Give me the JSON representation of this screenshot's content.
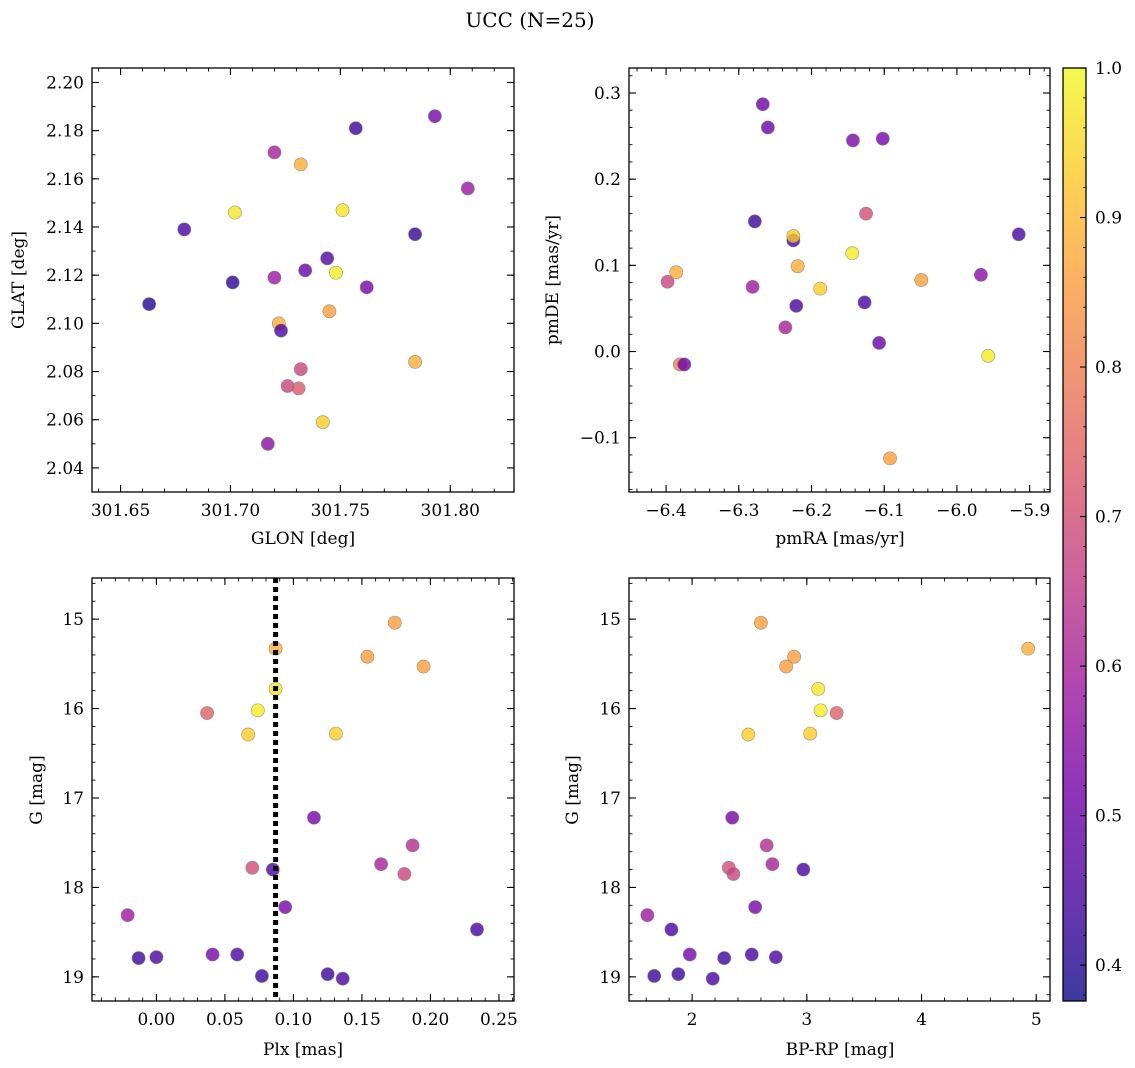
{
  "figure": {
    "title": "UCC (N=25)"
  },
  "colormap": {
    "name": "plasma",
    "stops": [
      "#0d0887",
      "#46039f",
      "#7201a8",
      "#9c179e",
      "#bd3786",
      "#d8576b",
      "#ed7953",
      "#fb9f3a",
      "#fdca26",
      "#f0f921"
    ],
    "point_alpha": 0.8,
    "point_edge_color": "#7f7f7f"
  },
  "chart_data": [
    {
      "id": "glon_glat",
      "type": "scatter",
      "xlabel": "GLON [deg]",
      "ylabel": "GLAT [deg]",
      "xlim": [
        301.637,
        301.829
      ],
      "ylim": [
        2.03,
        2.206
      ],
      "invert_y": false,
      "grid": false,
      "xticks": [
        301.65,
        301.7,
        301.75,
        301.8
      ],
      "xtick_labels": [
        "301.65",
        "301.70",
        "301.75",
        "301.80"
      ],
      "yticks": [
        2.04,
        2.06,
        2.08,
        2.1,
        2.12,
        2.14,
        2.16,
        2.18,
        2.2
      ],
      "ytick_labels": [
        "2.04",
        "2.06",
        "2.08",
        "2.10",
        "2.12",
        "2.14",
        "2.16",
        "2.18",
        "2.20"
      ],
      "points": [
        {
          "x": 301.663,
          "y": 2.108,
          "c": 0.4
        },
        {
          "x": 301.679,
          "y": 2.139,
          "c": 0.45
        },
        {
          "x": 301.701,
          "y": 2.117,
          "c": 0.41
        },
        {
          "x": 301.702,
          "y": 2.146,
          "c": 0.97
        },
        {
          "x": 301.717,
          "y": 2.05,
          "c": 0.55
        },
        {
          "x": 301.72,
          "y": 2.119,
          "c": 0.58
        },
        {
          "x": 301.72,
          "y": 2.171,
          "c": 0.6
        },
        {
          "x": 301.722,
          "y": 2.1,
          "c": 0.88
        },
        {
          "x": 301.723,
          "y": 2.097,
          "c": 0.45
        },
        {
          "x": 301.726,
          "y": 2.074,
          "c": 0.68
        },
        {
          "x": 301.731,
          "y": 2.073,
          "c": 0.73
        },
        {
          "x": 301.732,
          "y": 2.081,
          "c": 0.68
        },
        {
          "x": 301.732,
          "y": 2.166,
          "c": 0.88
        },
        {
          "x": 301.734,
          "y": 2.122,
          "c": 0.5
        },
        {
          "x": 301.742,
          "y": 2.059,
          "c": 0.93
        },
        {
          "x": 301.744,
          "y": 2.127,
          "c": 0.46
        },
        {
          "x": 301.745,
          "y": 2.105,
          "c": 0.86
        },
        {
          "x": 301.748,
          "y": 2.121,
          "c": 0.98
        },
        {
          "x": 301.751,
          "y": 2.147,
          "c": 0.97
        },
        {
          "x": 301.757,
          "y": 2.181,
          "c": 0.43
        },
        {
          "x": 301.762,
          "y": 2.115,
          "c": 0.52
        },
        {
          "x": 301.784,
          "y": 2.084,
          "c": 0.88
        },
        {
          "x": 301.784,
          "y": 2.137,
          "c": 0.42
        },
        {
          "x": 301.793,
          "y": 2.186,
          "c": 0.52
        },
        {
          "x": 301.808,
          "y": 2.156,
          "c": 0.58
        }
      ]
    },
    {
      "id": "pm",
      "type": "scatter",
      "xlabel": "pmRA [mas/yr]",
      "ylabel": "pmDE [mas/yr]",
      "xlim": [
        -6.451,
        -5.872
      ],
      "ylim": [
        -0.163,
        0.329
      ],
      "invert_y": false,
      "grid": false,
      "xticks": [
        -6.4,
        -6.3,
        -6.2,
        -6.1,
        -6.0,
        -5.9
      ],
      "xtick_labels": [
        "−6.4",
        "−6.3",
        "−6.2",
        "−6.1",
        "−6.0",
        "−5.9"
      ],
      "yticks": [
        -0.1,
        0.0,
        0.1,
        0.2,
        0.3
      ],
      "ytick_labels": [
        "−0.1",
        "0.0",
        "0.1",
        "0.2",
        "0.3"
      ],
      "points": [
        {
          "x": -6.398,
          "y": 0.081,
          "c": 0.68
        },
        {
          "x": -6.386,
          "y": 0.092,
          "c": 0.88
        },
        {
          "x": -6.381,
          "y": -0.015,
          "c": 0.8
        },
        {
          "x": -6.375,
          "y": -0.015,
          "c": 0.5
        },
        {
          "x": -6.281,
          "y": 0.075,
          "c": 0.58
        },
        {
          "x": -6.278,
          "y": 0.151,
          "c": 0.43
        },
        {
          "x": -6.267,
          "y": 0.287,
          "c": 0.5
        },
        {
          "x": -6.26,
          "y": 0.26,
          "c": 0.5
        },
        {
          "x": -6.236,
          "y": 0.028,
          "c": 0.6
        },
        {
          "x": -6.225,
          "y": 0.129,
          "c": 0.45
        },
        {
          "x": -6.225,
          "y": 0.134,
          "c": 0.93
        },
        {
          "x": -6.221,
          "y": 0.053,
          "c": 0.45
        },
        {
          "x": -6.219,
          "y": 0.099,
          "c": 0.88
        },
        {
          "x": -6.188,
          "y": 0.073,
          "c": 0.93
        },
        {
          "x": -6.144,
          "y": 0.114,
          "c": 0.98
        },
        {
          "x": -6.143,
          "y": 0.245,
          "c": 0.53
        },
        {
          "x": -6.127,
          "y": 0.057,
          "c": 0.45
        },
        {
          "x": -6.125,
          "y": 0.16,
          "c": 0.7
        },
        {
          "x": -6.107,
          "y": 0.01,
          "c": 0.5
        },
        {
          "x": -6.102,
          "y": 0.247,
          "c": 0.52
        },
        {
          "x": -6.092,
          "y": -0.124,
          "c": 0.86
        },
        {
          "x": -6.049,
          "y": 0.083,
          "c": 0.86
        },
        {
          "x": -5.967,
          "y": 0.089,
          "c": 0.55
        },
        {
          "x": -5.957,
          "y": -0.005,
          "c": 0.98
        },
        {
          "x": -5.915,
          "y": 0.136,
          "c": 0.45
        }
      ]
    },
    {
      "id": "plx_g",
      "type": "scatter",
      "xlabel": "Plx [mas]",
      "ylabel": "G [mag]",
      "xlim": [
        -0.047,
        0.261
      ],
      "ylim": [
        19.27,
        14.54
      ],
      "invert_y": true,
      "grid": false,
      "xticks": [
        0.0,
        0.05,
        0.1,
        0.15,
        0.2,
        0.25
      ],
      "xtick_labels": [
        "0.00",
        "0.05",
        "0.10",
        "0.15",
        "0.20",
        "0.25"
      ],
      "yticks": [
        15,
        16,
        17,
        18,
        19
      ],
      "ytick_labels": [
        "15",
        "16",
        "17",
        "18",
        "19"
      ],
      "vline": {
        "x": 0.087,
        "style": "dotted"
      },
      "points": [
        {
          "x": 0.174,
          "y": 15.04,
          "c": 0.86
        },
        {
          "x": 0.087,
          "y": 15.33,
          "c": 0.88
        },
        {
          "x": 0.154,
          "y": 15.42,
          "c": 0.86
        },
        {
          "x": 0.195,
          "y": 15.53,
          "c": 0.86
        },
        {
          "x": 0.087,
          "y": 15.78,
          "c": 0.97
        },
        {
          "x": 0.074,
          "y": 16.02,
          "c": 0.98
        },
        {
          "x": 0.037,
          "y": 16.05,
          "c": 0.74
        },
        {
          "x": 0.067,
          "y": 16.29,
          "c": 0.93
        },
        {
          "x": 0.131,
          "y": 16.28,
          "c": 0.93
        },
        {
          "x": 0.115,
          "y": 17.22,
          "c": 0.52
        },
        {
          "x": 0.187,
          "y": 17.53,
          "c": 0.63
        },
        {
          "x": 0.164,
          "y": 17.74,
          "c": 0.6
        },
        {
          "x": 0.07,
          "y": 17.78,
          "c": 0.7
        },
        {
          "x": 0.085,
          "y": 17.8,
          "c": 0.45
        },
        {
          "x": 0.181,
          "y": 17.85,
          "c": 0.68
        },
        {
          "x": 0.094,
          "y": 18.22,
          "c": 0.52
        },
        {
          "x": -0.021,
          "y": 18.31,
          "c": 0.58
        },
        {
          "x": 0.234,
          "y": 18.47,
          "c": 0.45
        },
        {
          "x": 0.041,
          "y": 18.75,
          "c": 0.52
        },
        {
          "x": 0.059,
          "y": 18.75,
          "c": 0.45
        },
        {
          "x": -0.013,
          "y": 18.79,
          "c": 0.43
        },
        {
          "x": 0.0,
          "y": 18.78,
          "c": 0.45
        },
        {
          "x": 0.077,
          "y": 18.99,
          "c": 0.43
        },
        {
          "x": 0.125,
          "y": 18.97,
          "c": 0.43
        },
        {
          "x": 0.136,
          "y": 19.02,
          "c": 0.45
        }
      ]
    },
    {
      "id": "bprp_g",
      "type": "scatter",
      "xlabel": "BP-RP [mag]",
      "ylabel": "G [mag]",
      "xlim": [
        1.45,
        5.12
      ],
      "ylim": [
        19.27,
        14.54
      ],
      "invert_y": true,
      "grid": false,
      "xticks": [
        2,
        3,
        4,
        5
      ],
      "xtick_labels": [
        "2",
        "3",
        "4",
        "5"
      ],
      "yticks": [
        15,
        16,
        17,
        18,
        19
      ],
      "ytick_labels": [
        "15",
        "16",
        "17",
        "18",
        "19"
      ],
      "points": [
        {
          "x": 2.6,
          "y": 15.04,
          "c": 0.86
        },
        {
          "x": 4.93,
          "y": 15.33,
          "c": 0.88
        },
        {
          "x": 2.89,
          "y": 15.42,
          "c": 0.86
        },
        {
          "x": 2.82,
          "y": 15.53,
          "c": 0.86
        },
        {
          "x": 3.1,
          "y": 15.78,
          "c": 0.97
        },
        {
          "x": 3.12,
          "y": 16.02,
          "c": 0.98
        },
        {
          "x": 3.26,
          "y": 16.05,
          "c": 0.74
        },
        {
          "x": 2.49,
          "y": 16.29,
          "c": 0.93
        },
        {
          "x": 3.03,
          "y": 16.28,
          "c": 0.93
        },
        {
          "x": 2.35,
          "y": 17.22,
          "c": 0.52
        },
        {
          "x": 2.65,
          "y": 17.53,
          "c": 0.63
        },
        {
          "x": 2.7,
          "y": 17.74,
          "c": 0.6
        },
        {
          "x": 2.32,
          "y": 17.78,
          "c": 0.7
        },
        {
          "x": 2.97,
          "y": 17.8,
          "c": 0.45
        },
        {
          "x": 2.36,
          "y": 17.85,
          "c": 0.68
        },
        {
          "x": 2.55,
          "y": 18.22,
          "c": 0.52
        },
        {
          "x": 1.61,
          "y": 18.31,
          "c": 0.58
        },
        {
          "x": 1.82,
          "y": 18.47,
          "c": 0.45
        },
        {
          "x": 1.98,
          "y": 18.75,
          "c": 0.52
        },
        {
          "x": 2.52,
          "y": 18.75,
          "c": 0.45
        },
        {
          "x": 2.28,
          "y": 18.79,
          "c": 0.43
        },
        {
          "x": 2.73,
          "y": 18.78,
          "c": 0.45
        },
        {
          "x": 1.67,
          "y": 18.99,
          "c": 0.43
        },
        {
          "x": 1.88,
          "y": 18.97,
          "c": 0.43
        },
        {
          "x": 2.18,
          "y": 19.02,
          "c": 0.45
        }
      ]
    }
  ],
  "colorbar": {
    "vmin": 0.376,
    "vmax": 1.0,
    "ticks": [
      0.4,
      0.5,
      0.6,
      0.7,
      0.8,
      0.9,
      1.0
    ],
    "tick_labels": [
      "0.4",
      "0.5",
      "0.6",
      "0.7",
      "0.8",
      "0.9",
      "1.0"
    ]
  }
}
